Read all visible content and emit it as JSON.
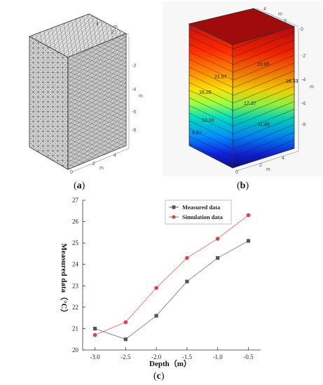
{
  "panels": {
    "a": {
      "label_open": "(",
      "label_letter": "a",
      "label_close": ")"
    },
    "b": {
      "label_open": "(",
      "label_letter": "b",
      "label_close": ")"
    },
    "c": {
      "label_open": "(",
      "label_letter": "c",
      "label_close": ")"
    }
  },
  "mesh_axes": {
    "top_ticks": [
      "4",
      "2"
    ],
    "vertical_ticks": [
      "-2",
      "-4",
      "-6",
      "-8"
    ],
    "bottom_ticks": [
      "0",
      "2",
      "4"
    ],
    "unit": "m"
  },
  "temp_axes": {
    "top_ticks": [
      "4",
      "2",
      "0"
    ],
    "vertical_ticks": [
      "-2",
      "-4",
      "-6",
      "-8"
    ],
    "bottom_ticks": [
      "0",
      "2",
      "4"
    ],
    "unit": "m"
  },
  "contour_labels": [
    "23.65",
    "21.57",
    "18.33",
    "16.20",
    "17.37",
    "13.69",
    "11.85",
    "6.87"
  ],
  "colors": {
    "mesh_face": "#d9d9d9",
    "measured": "#555555",
    "simulation": "#e04040"
  },
  "chart_data": {
    "type": "line",
    "title": "",
    "xlabel": "Depth（m）",
    "ylabel": "Measured data（°C）",
    "x": [
      -3.0,
      -2.5,
      -2.0,
      -1.5,
      -1.0,
      -0.5
    ],
    "x_tick_labels": [
      "-3.0",
      "-2.5",
      "-2.0",
      "-1.5",
      "-1.0",
      "-0.5"
    ],
    "y_tick_labels": [
      "20",
      "21",
      "22",
      "23",
      "24",
      "25",
      "26",
      "27"
    ],
    "xlim": [
      -3.2,
      -0.3
    ],
    "ylim": [
      20,
      27
    ],
    "grid": false,
    "legend_position": "top-center",
    "series": [
      {
        "name": "Measured data",
        "marker": "square",
        "color": "#555555",
        "values": [
          21.0,
          20.5,
          21.6,
          23.2,
          24.3,
          25.1
        ]
      },
      {
        "name": "Simulation data",
        "marker": "circle",
        "color": "#e04040",
        "values": [
          20.7,
          21.3,
          22.9,
          24.3,
          25.2,
          26.3
        ]
      }
    ]
  }
}
